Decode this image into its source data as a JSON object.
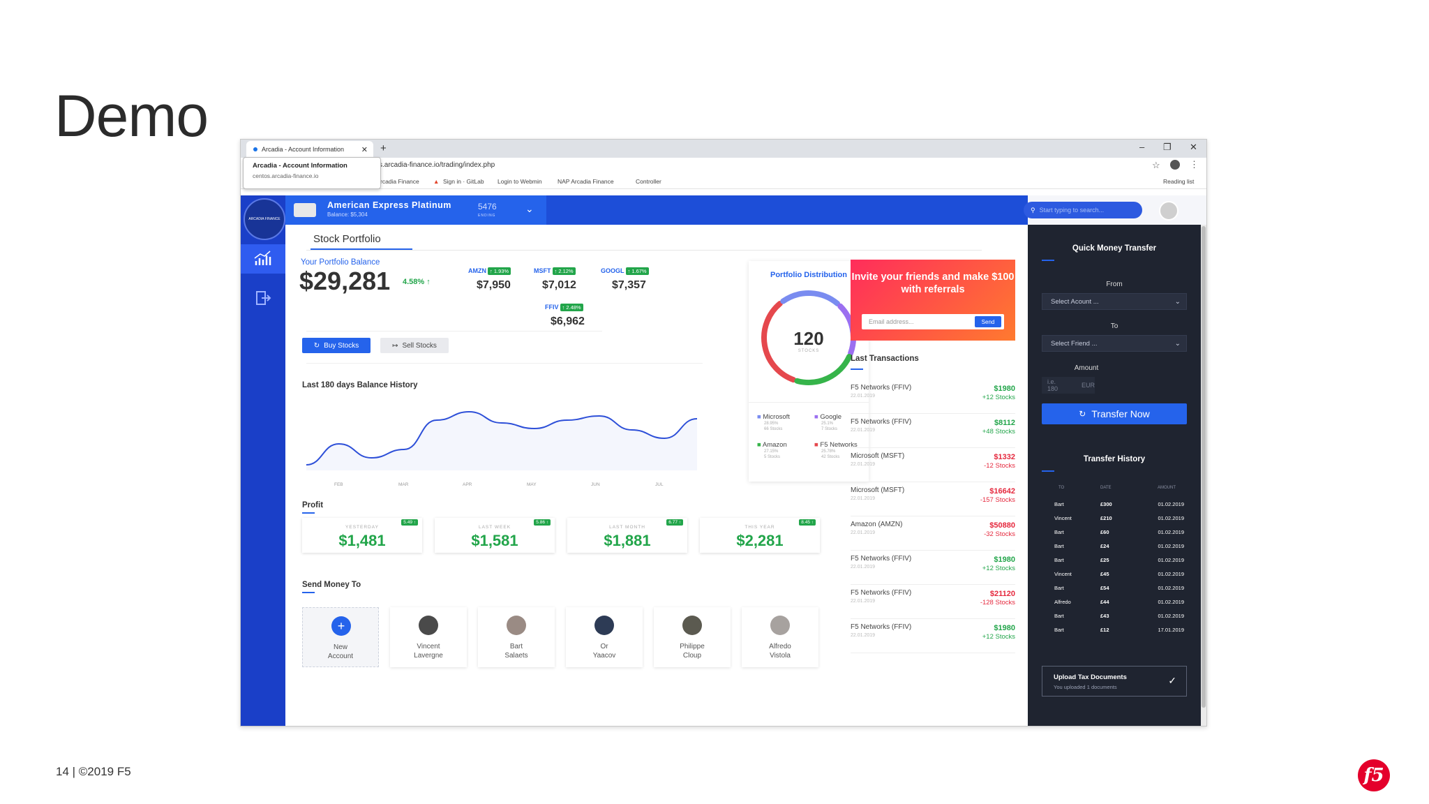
{
  "slide": {
    "title": "Demo",
    "footer": "14 | ©2019 F5",
    "logo_text": "f5"
  },
  "browser": {
    "tab_title": "Arcadia - Account Information",
    "tab_close": "✕",
    "new_tab": "+",
    "url": "s.arcadia-finance.io/trading/index.php",
    "tooltip_title": "Arcadia - Account Information",
    "tooltip_url": "centos.arcadia-finance.io",
    "bookmarks": [
      "rcadia Finance",
      "Sign in · GitLab",
      "Login to Webmin",
      "NAP Arcadia Finance",
      "Controller"
    ],
    "reading_list": "Reading list",
    "window_controls": [
      "–",
      "❐",
      "✕"
    ]
  },
  "app": {
    "logo_text": "ARCADIA FINANCE",
    "card": {
      "name": "American Express Platinum",
      "balance": "Balance: $5,304",
      "number": "5476",
      "ending": "ENDING"
    },
    "search_placeholder": "Start typing to search...",
    "section_tab": "Stock Portfolio",
    "portfolio": {
      "label": "Your Portfolio Balance",
      "value": "$29,281",
      "change": "4.58% ↑"
    },
    "tickers": [
      {
        "sym": "AMZN",
        "chg": "↑ 1.93%",
        "val": "$7,950"
      },
      {
        "sym": "MSFT",
        "chg": "↑ 2.12%",
        "val": "$7,012"
      },
      {
        "sym": "GOOGL",
        "chg": "↑ 1.67%",
        "val": "$7,357"
      },
      {
        "sym": "FFIV",
        "chg": "↑ 2.48%",
        "val": "$6,962"
      }
    ],
    "buy_label": "Buy Stocks",
    "sell_label": "Sell Stocks",
    "history_title": "Last 180 days Balance History",
    "profit_title": "Profit",
    "profit": [
      {
        "label": "YESTERDAY",
        "value": "$1,481",
        "badge": "5.49 ↑"
      },
      {
        "label": "LAST WEEK",
        "value": "$1,581",
        "badge": "5.86 ↑"
      },
      {
        "label": "LAST MONTH",
        "value": "$1,881",
        "badge": "6.77 ↑"
      },
      {
        "label": "THIS YEAR",
        "value": "$2,281",
        "badge": "8.45 ↑"
      }
    ],
    "send_title": "Send Money To",
    "people": [
      {
        "name": "New\nAccount"
      },
      {
        "name": "Vincent\nLavergne"
      },
      {
        "name": "Bart\nSalaets"
      },
      {
        "name": "Or\nYaacov"
      },
      {
        "name": "Philippe\nCloup"
      },
      {
        "name": "Alfredo\nVistola"
      }
    ],
    "distribution": {
      "title": "Portfolio Distribution",
      "center": "120",
      "center_sub": "STOCKS",
      "legend": [
        {
          "name": "Microsoft",
          "pct": "28.95%",
          "stocks": "66 Stocks",
          "color": "#7a8cf0"
        },
        {
          "name": "Google",
          "pct": "25.1%",
          "stocks": "7 Stocks",
          "color": "#9b6ff0"
        },
        {
          "name": "Amazon",
          "pct": "27.15%",
          "stocks": "5 Stocks",
          "color": "#36b44a"
        },
        {
          "name": "F5 Networks",
          "pct": "25.78%",
          "stocks": "42 Stocks",
          "color": "#e5484d"
        }
      ]
    },
    "invite": {
      "text": "Invite your friends and make $100 with referrals",
      "placeholder": "Email address...",
      "send": "Send"
    },
    "last_tx_title": "Last Transactions",
    "transactions": [
      {
        "name": "F5 Networks (FFIV)",
        "date": "22.01.2019",
        "amount": "$1980",
        "qty": "+12 Stocks",
        "dir": "pos"
      },
      {
        "name": "F5 Networks (FFIV)",
        "date": "22.01.2019",
        "amount": "$8112",
        "qty": "+48 Stocks",
        "dir": "pos"
      },
      {
        "name": "Microsoft (MSFT)",
        "date": "22.01.2019",
        "amount": "$1332",
        "qty": "-12 Stocks",
        "dir": "neg"
      },
      {
        "name": "Microsoft (MSFT)",
        "date": "22.01.2019",
        "amount": "$16642",
        "qty": "-157 Stocks",
        "dir": "neg"
      },
      {
        "name": "Amazon (AMZN)",
        "date": "22.01.2019",
        "amount": "$50880",
        "qty": "-32 Stocks",
        "dir": "neg"
      },
      {
        "name": "F5 Networks (FFIV)",
        "date": "22.01.2019",
        "amount": "$1980",
        "qty": "+12 Stocks",
        "dir": "pos"
      },
      {
        "name": "F5 Networks (FFIV)",
        "date": "22.01.2019",
        "amount": "$21120",
        "qty": "-128 Stocks",
        "dir": "neg"
      },
      {
        "name": "F5 Networks (FFIV)",
        "date": "22.01.2019",
        "amount": "$1980",
        "qty": "+12 Stocks",
        "dir": "pos"
      }
    ],
    "transfer": {
      "title": "Quick Money Transfer",
      "from_label": "From",
      "from_value": "Select Acount ...",
      "to_label": "To",
      "to_value": "Select Friend ...",
      "amount_label": "Amount",
      "amount_placeholder": "i.e. 180",
      "currency": "EUR",
      "button": "Transfer Now"
    },
    "history": {
      "title": "Transfer History",
      "headers": [
        "TO",
        "DATE",
        "AMOUNT"
      ],
      "rows": [
        [
          "Bart",
          "£300",
          "01.02.2019"
        ],
        [
          "Vincent",
          "£210",
          "01.02.2019"
        ],
        [
          "Bart",
          "£60",
          "01.02.2019"
        ],
        [
          "Bart",
          "£24",
          "01.02.2019"
        ],
        [
          "Bart",
          "£25",
          "01.02.2019"
        ],
        [
          "Vincent",
          "£45",
          "01.02.2019"
        ],
        [
          "Bart",
          "£54",
          "01.02.2019"
        ],
        [
          "Alfredo",
          "£44",
          "01.02.2019"
        ],
        [
          "Bart",
          "£43",
          "01.02.2019"
        ],
        [
          "Bart",
          "£12",
          "17.01.2019"
        ]
      ]
    },
    "upload": {
      "title": "Upload Tax Documents",
      "sub": "You uploaded 1 documents"
    }
  },
  "chart_data": {
    "type": "line",
    "title": "Last 180 days Balance History",
    "categories": [
      "FEB",
      "MAR",
      "APR",
      "MAY",
      "JUN",
      "JUL"
    ],
    "x": [
      0,
      1,
      2,
      3,
      4,
      5,
      6,
      7,
      8,
      9,
      10,
      11,
      12
    ],
    "values": [
      8,
      38,
      18,
      30,
      72,
      84,
      68,
      60,
      72,
      78,
      58,
      46,
      74
    ],
    "ylim": [
      0,
      100
    ],
    "color": "#2d4fd8",
    "grid": false
  }
}
